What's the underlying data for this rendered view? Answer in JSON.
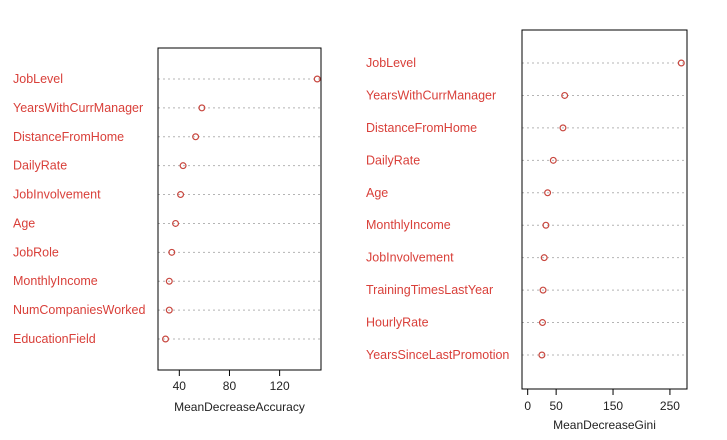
{
  "colors": {
    "label": "#d9403a",
    "point": "#c8473f",
    "dotted_line": "#b4b4b4",
    "frame": "#000000"
  },
  "chart_data": [
    {
      "type": "scatter",
      "subtype": "dotchart",
      "xlabel": "MeanDecreaseAccuracy",
      "ylabel": "",
      "categories": [
        "JobLevel",
        "YearsWithCurrManager",
        "DistanceFromHome",
        "DailyRate",
        "JobInvolvement",
        "Age",
        "JobRole",
        "MonthlyIncome",
        "NumCompaniesWorked",
        "EducationField"
      ],
      "values": [
        150,
        58,
        53,
        43,
        41,
        37,
        34,
        32,
        32,
        29
      ],
      "xlim": [
        23,
        153
      ],
      "xticks": [
        40,
        80,
        120
      ],
      "grid": false
    },
    {
      "type": "scatter",
      "subtype": "dotchart",
      "xlabel": "MeanDecreaseGini",
      "ylabel": "",
      "categories": [
        "JobLevel",
        "YearsWithCurrManager",
        "DistanceFromHome",
        "DailyRate",
        "Age",
        "MonthlyIncome",
        "JobInvolvement",
        "TrainingTimesLastYear",
        "HourlyRate",
        "YearsSinceLastPromotion"
      ],
      "values": [
        270,
        65,
        62,
        45,
        35,
        32,
        29,
        27,
        26,
        25
      ],
      "xlim": [
        -10,
        280
      ],
      "xticks": [
        0,
        50,
        150,
        250
      ],
      "grid": false
    }
  ]
}
